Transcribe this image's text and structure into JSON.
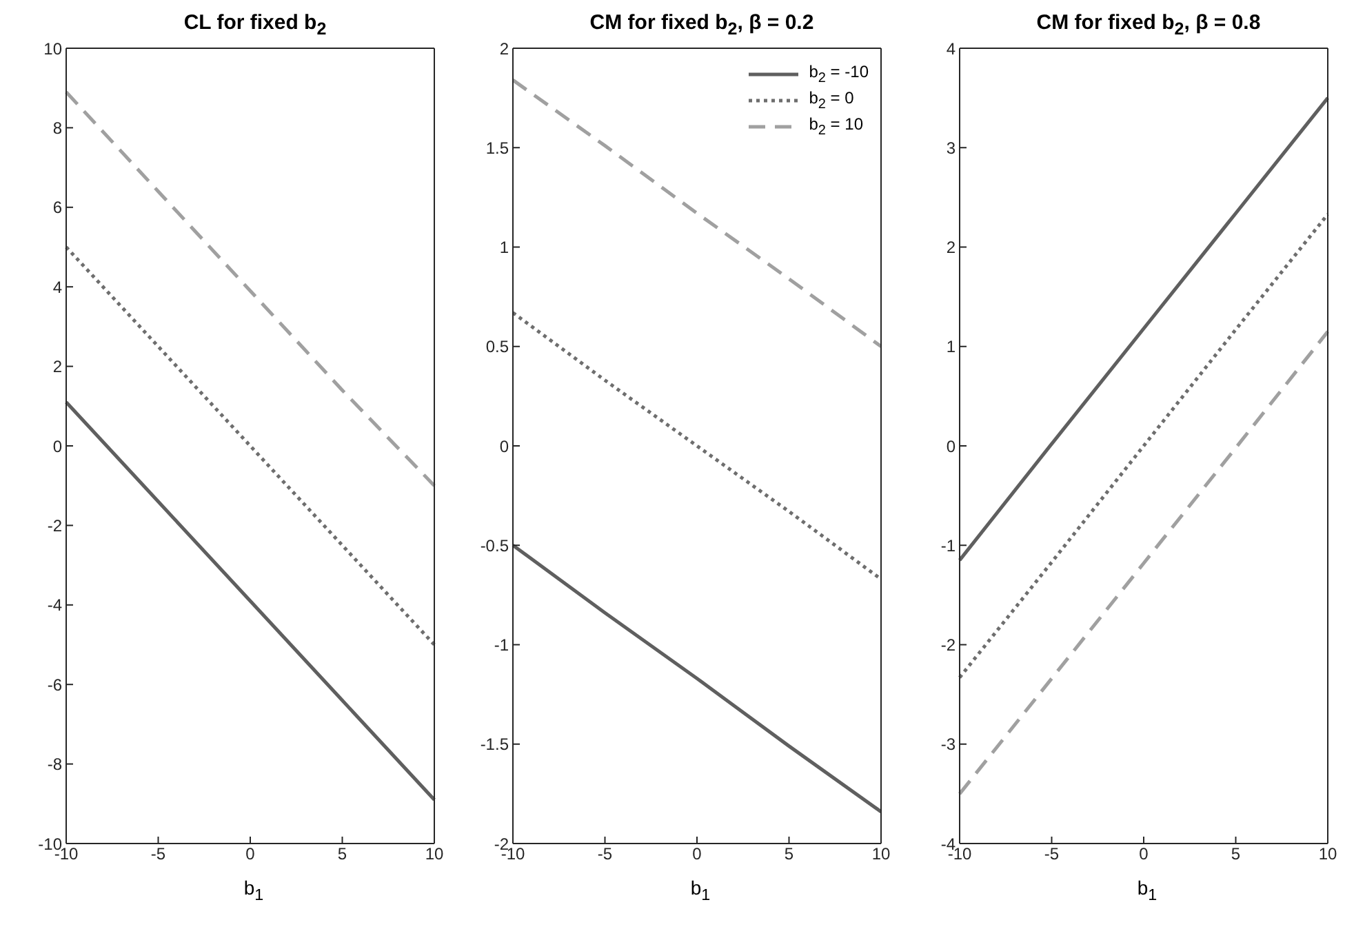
{
  "chart_data": [
    {
      "type": "line",
      "title": "CL for fixed b$_{2}$",
      "xlabel": "b$_{1}$",
      "x": [
        -10,
        -5,
        0,
        5,
        10
      ],
      "xlim": [
        -10,
        10
      ],
      "xticks": [
        -10,
        -5,
        0,
        5,
        10
      ],
      "ylim": [
        -10,
        10
      ],
      "yticks": [
        -10,
        -8,
        -6,
        -4,
        -2,
        0,
        2,
        4,
        6,
        8,
        10
      ],
      "grid": false,
      "legend": false,
      "marker": "none",
      "series": [
        {
          "color": "#5f5f5f",
          "line_style": "solid",
          "values": [
            1.1,
            -1.4,
            -3.9,
            -6.4,
            -8.9
          ]
        },
        {
          "color": "#6e6e6e",
          "line_style": "dotted",
          "values": [
            5,
            2.5,
            0,
            -2.5,
            -5
          ]
        },
        {
          "color": "#a0a0a0",
          "line_style": "dashed",
          "values": [
            8.9,
            6.4,
            3.9,
            1.4,
            -1
          ]
        }
      ]
    },
    {
      "type": "line",
      "title": "CM for fixed b$_{2}$, β = 0.2",
      "xlabel": "b$_{1}$",
      "x": [
        -10,
        -5,
        0,
        5,
        10
      ],
      "xlim": [
        -10,
        10
      ],
      "xticks": [
        -10,
        -5,
        0,
        5,
        10
      ],
      "ylim": [
        -2,
        2
      ],
      "yticks": [
        -2,
        -1.5,
        -1,
        -0.5,
        0,
        0.5,
        1,
        1.5,
        2
      ],
      "grid": false,
      "legend": "top right",
      "marker": "none",
      "series": [
        {
          "name": "b$_{2}$ = -10",
          "color": "#5f5f5f",
          "line_style": "solid",
          "values": [
            -0.5,
            -0.84,
            -1.17,
            -1.51,
            -1.84
          ]
        },
        {
          "name": "b$_{2}$ = 0",
          "color": "#6e6e6e",
          "line_style": "dotted",
          "values": [
            0.67,
            0.33,
            0,
            -0.33,
            -0.67
          ]
        },
        {
          "name": "b$_{2}$ = 10",
          "color": "#a0a0a0",
          "line_style": "dashed",
          "values": [
            1.84,
            1.51,
            1.17,
            0.84,
            0.5
          ]
        }
      ]
    },
    {
      "type": "line",
      "title": "CM for fixed b$_{2}$, β = 0.8",
      "xlabel": "b$_{1}$",
      "x": [
        -10,
        -5,
        0,
        5,
        10
      ],
      "xlim": [
        -10,
        10
      ],
      "xticks": [
        -10,
        -5,
        0,
        5,
        10
      ],
      "ylim": [
        -4,
        4
      ],
      "yticks": [
        -4,
        -3,
        -2,
        -1,
        0,
        1,
        2,
        3,
        4
      ],
      "grid": false,
      "legend": false,
      "marker": "none",
      "series": [
        {
          "color": "#5f5f5f",
          "line_style": "solid",
          "values": [
            -1.15,
            0.02,
            1.18,
            2.34,
            3.5
          ]
        },
        {
          "color": "#6e6e6e",
          "line_style": "dotted",
          "values": [
            -2.33,
            -1.17,
            0,
            1.17,
            2.33
          ]
        },
        {
          "color": "#a0a0a0",
          "line_style": "dashed",
          "values": [
            -3.5,
            -2.34,
            -1.18,
            -0.02,
            1.15
          ]
        }
      ]
    }
  ]
}
